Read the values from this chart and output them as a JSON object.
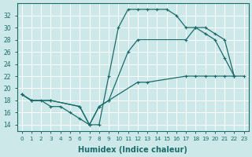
{
  "bg_color": "#cde8e8",
  "grid_color": "#ffffff",
  "line_color": "#1a6b6b",
  "xlabel": "Humidex (Indice chaleur)",
  "xlim": [
    -0.5,
    23.5
  ],
  "ylim": [
    13,
    34
  ],
  "ytick_vals": [
    14,
    16,
    18,
    20,
    22,
    24,
    26,
    28,
    30,
    32
  ],
  "curve1_x": [
    0,
    1,
    2,
    3,
    4,
    5,
    6,
    7,
    8,
    9,
    10,
    11,
    12,
    13,
    14,
    15,
    16,
    17,
    18,
    19,
    20,
    21,
    22
  ],
  "curve1_y": [
    19,
    18,
    18,
    17,
    17,
    16,
    15,
    14,
    14,
    22,
    30,
    33,
    33,
    33,
    33,
    33,
    32,
    30,
    30,
    29,
    28,
    25,
    22
  ],
  "curve2_x": [
    0,
    1,
    3,
    6,
    7,
    8,
    9,
    11,
    12,
    17,
    18,
    19,
    20,
    21,
    22
  ],
  "curve2_y": [
    19,
    18,
    18,
    17,
    14,
    17,
    18,
    26,
    28,
    28,
    30,
    30,
    29,
    28,
    22
  ],
  "curve3_x": [
    0,
    1,
    3,
    6,
    7,
    8,
    9,
    12,
    13,
    17,
    18,
    19,
    20,
    21,
    22,
    23
  ],
  "curve3_y": [
    19,
    18,
    18,
    17,
    14,
    17,
    18,
    21,
    21,
    22,
    22,
    22,
    22,
    22,
    22,
    22
  ]
}
